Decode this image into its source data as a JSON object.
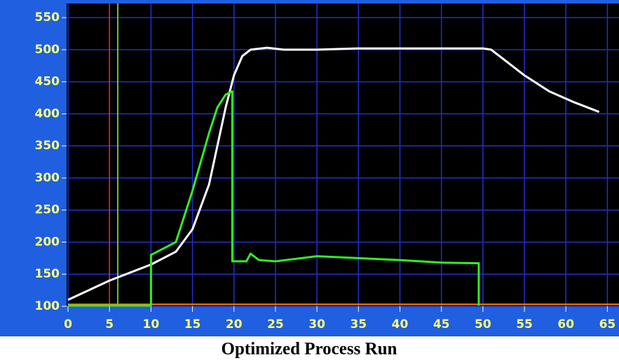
{
  "chart_data": {
    "type": "line",
    "title": "Optimized Process Run",
    "xlim": [
      0,
      66.4
    ],
    "ylim": [
      100,
      572
    ],
    "xticks": [
      0,
      5,
      10,
      15,
      20,
      25,
      30,
      35,
      40,
      45,
      50,
      55,
      60,
      65
    ],
    "yticks": [
      100,
      150,
      200,
      250,
      300,
      350,
      400,
      450,
      500,
      550
    ],
    "grid": true,
    "series": [
      {
        "color": "#ffffff",
        "x": [
          0,
          5,
          10,
          13,
          15,
          17,
          18,
          19,
          20,
          21,
          22,
          24,
          26,
          30,
          35,
          40,
          45,
          50,
          51,
          53,
          55,
          58,
          61,
          64
        ],
        "values": [
          110,
          140,
          165,
          185,
          220,
          290,
          350,
          410,
          460,
          490,
          500,
          503,
          500,
          500,
          502,
          502,
          502,
          502,
          500,
          480,
          460,
          435,
          418,
          403
        ]
      },
      {
        "color": "#33ee22",
        "x": [
          0,
          10,
          10,
          13,
          15,
          17,
          18,
          19,
          19.8,
          19.8,
          21.5,
          22,
          23,
          25,
          30,
          35,
          40,
          45,
          49.5,
          49.5
        ],
        "values": [
          101,
          101,
          180,
          200,
          280,
          370,
          410,
          430,
          435,
          170,
          170,
          182,
          172,
          170,
          178,
          175,
          172,
          168,
          167,
          101
        ]
      }
    ],
    "cursors": {
      "x": [
        5,
        6
      ],
      "x_colors": [
        "#ff2020",
        "#90ff40"
      ],
      "y": 103,
      "y_color": "#ff8000"
    }
  }
}
